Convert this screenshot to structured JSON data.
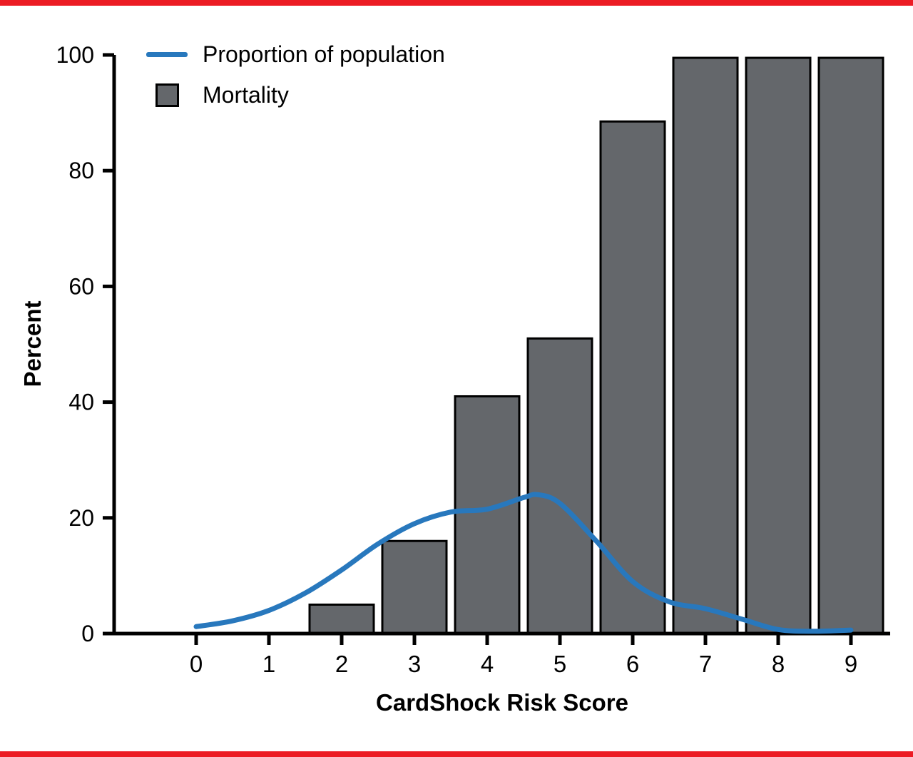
{
  "colors": {
    "accent_red": "#ec1c24",
    "bar_fill": "#64676b",
    "line_blue": "#2878bd",
    "axis_black": "#000000",
    "background": "#ffffff"
  },
  "chart_data": {
    "type": "bar",
    "title": "",
    "xlabel": "CardShock Risk Score",
    "ylabel": "Percent",
    "ylim": [
      0,
      100
    ],
    "yticks": [
      0,
      20,
      40,
      60,
      80,
      100
    ],
    "categories": [
      "0",
      "1",
      "2",
      "3",
      "4",
      "5",
      "6",
      "7",
      "8",
      "9"
    ],
    "grid": false,
    "legend_position": "top-left",
    "series": [
      {
        "name": "Proportion of population",
        "type": "line",
        "color": "#2878bd",
        "points": [
          [
            0,
            1.2
          ],
          [
            0.5,
            2.2
          ],
          [
            1,
            4
          ],
          [
            1.5,
            7
          ],
          [
            2,
            11
          ],
          [
            2.5,
            15.5
          ],
          [
            3,
            19
          ],
          [
            3.5,
            21
          ],
          [
            4,
            21.5
          ],
          [
            4.5,
            23.5
          ],
          [
            4.7,
            24
          ],
          [
            5,
            22.5
          ],
          [
            5.5,
            16
          ],
          [
            6,
            9
          ],
          [
            6.5,
            5.5
          ],
          [
            7,
            4.3
          ],
          [
            7.5,
            2.5
          ],
          [
            8,
            0.7
          ],
          [
            8.5,
            0.4
          ],
          [
            9,
            0.6
          ]
        ]
      },
      {
        "name": "Mortality",
        "type": "bar",
        "color": "#64676b",
        "values": [
          0,
          0,
          5,
          16,
          41,
          51,
          88.5,
          99.5,
          99.5,
          99.5
        ]
      }
    ]
  }
}
